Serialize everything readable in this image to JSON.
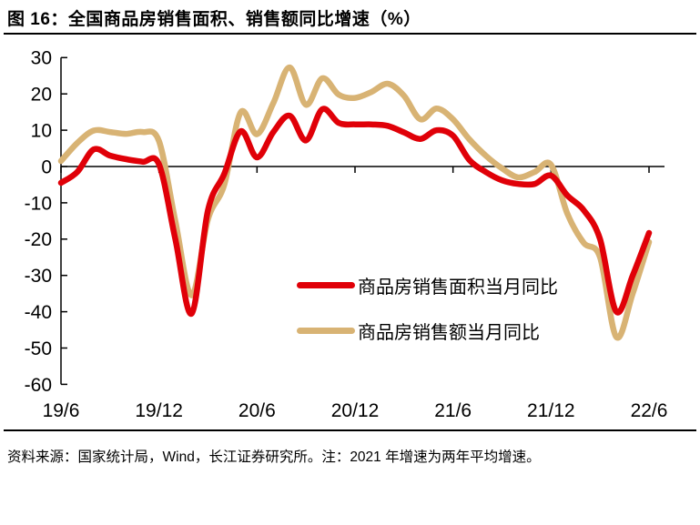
{
  "page": {
    "title": "图 16：全国商品房销售面积、销售额同比增速（%）",
    "footnote": "资料来源：国家统计局，Wind，长江证券研究所。注：2021 年增速为两年平均增速。"
  },
  "chart_data": {
    "type": "line",
    "title": "全国商品房销售面积、销售额同比增速（%）",
    "x": [
      "19/6",
      "19/7",
      "19/8",
      "19/9",
      "19/10",
      "19/11",
      "19/12",
      "20/1",
      "20/2",
      "20/3",
      "20/4",
      "20/5",
      "20/6",
      "20/7",
      "20/8",
      "20/9",
      "20/10",
      "20/11",
      "20/12",
      "21/1",
      "21/2",
      "21/3",
      "21/4",
      "21/5",
      "21/6",
      "21/7",
      "21/8",
      "21/9",
      "21/10",
      "21/11",
      "21/12",
      "22/1",
      "22/2",
      "22/3",
      "22/4",
      "22/5",
      "22/6"
    ],
    "x_axis_tick_labels": [
      "19/6",
      "19/12",
      "20/6",
      "20/12",
      "21/6",
      "21/12",
      "22/6"
    ],
    "y_ticks": [
      30,
      20,
      10,
      0,
      -10,
      -20,
      -30,
      -40,
      -50,
      -60
    ],
    "ylim": [
      -60,
      30
    ],
    "grid": false,
    "legend_position": "inside-lower-middle",
    "axis_color": "#000000",
    "series": [
      {
        "name": "商品房销售面积当月同比",
        "color": "#e00008",
        "values": [
          -4.5,
          -1.5,
          4.7,
          3,
          2,
          1.3,
          0.6,
          -20,
          -40.5,
          -12,
          -2,
          9.7,
          2.5,
          9.5,
          14,
          7.2,
          15.8,
          12,
          11.6,
          11.6,
          11.2,
          9.4,
          7.6,
          10,
          8.5,
          1.8,
          -1.5,
          -3.8,
          -4.8,
          -4.8,
          -2.5,
          -8,
          -12,
          -20,
          -40,
          -30,
          -18.3
        ]
      },
      {
        "name": "商品房销售额当月同比",
        "color": "#d8b374",
        "values": [
          1.5,
          6.5,
          9.9,
          9.5,
          9,
          9.5,
          7,
          -15,
          -35.5,
          -14.5,
          -5,
          14.9,
          8.9,
          17.5,
          27.3,
          17,
          24.3,
          19.8,
          18.9,
          20.5,
          22.8,
          19.5,
          13,
          16,
          13,
          7.5,
          3,
          -0.5,
          -3,
          -1.5,
          0.5,
          -13,
          -21,
          -25,
          -47,
          -35,
          -20.8
        ]
      }
    ]
  }
}
